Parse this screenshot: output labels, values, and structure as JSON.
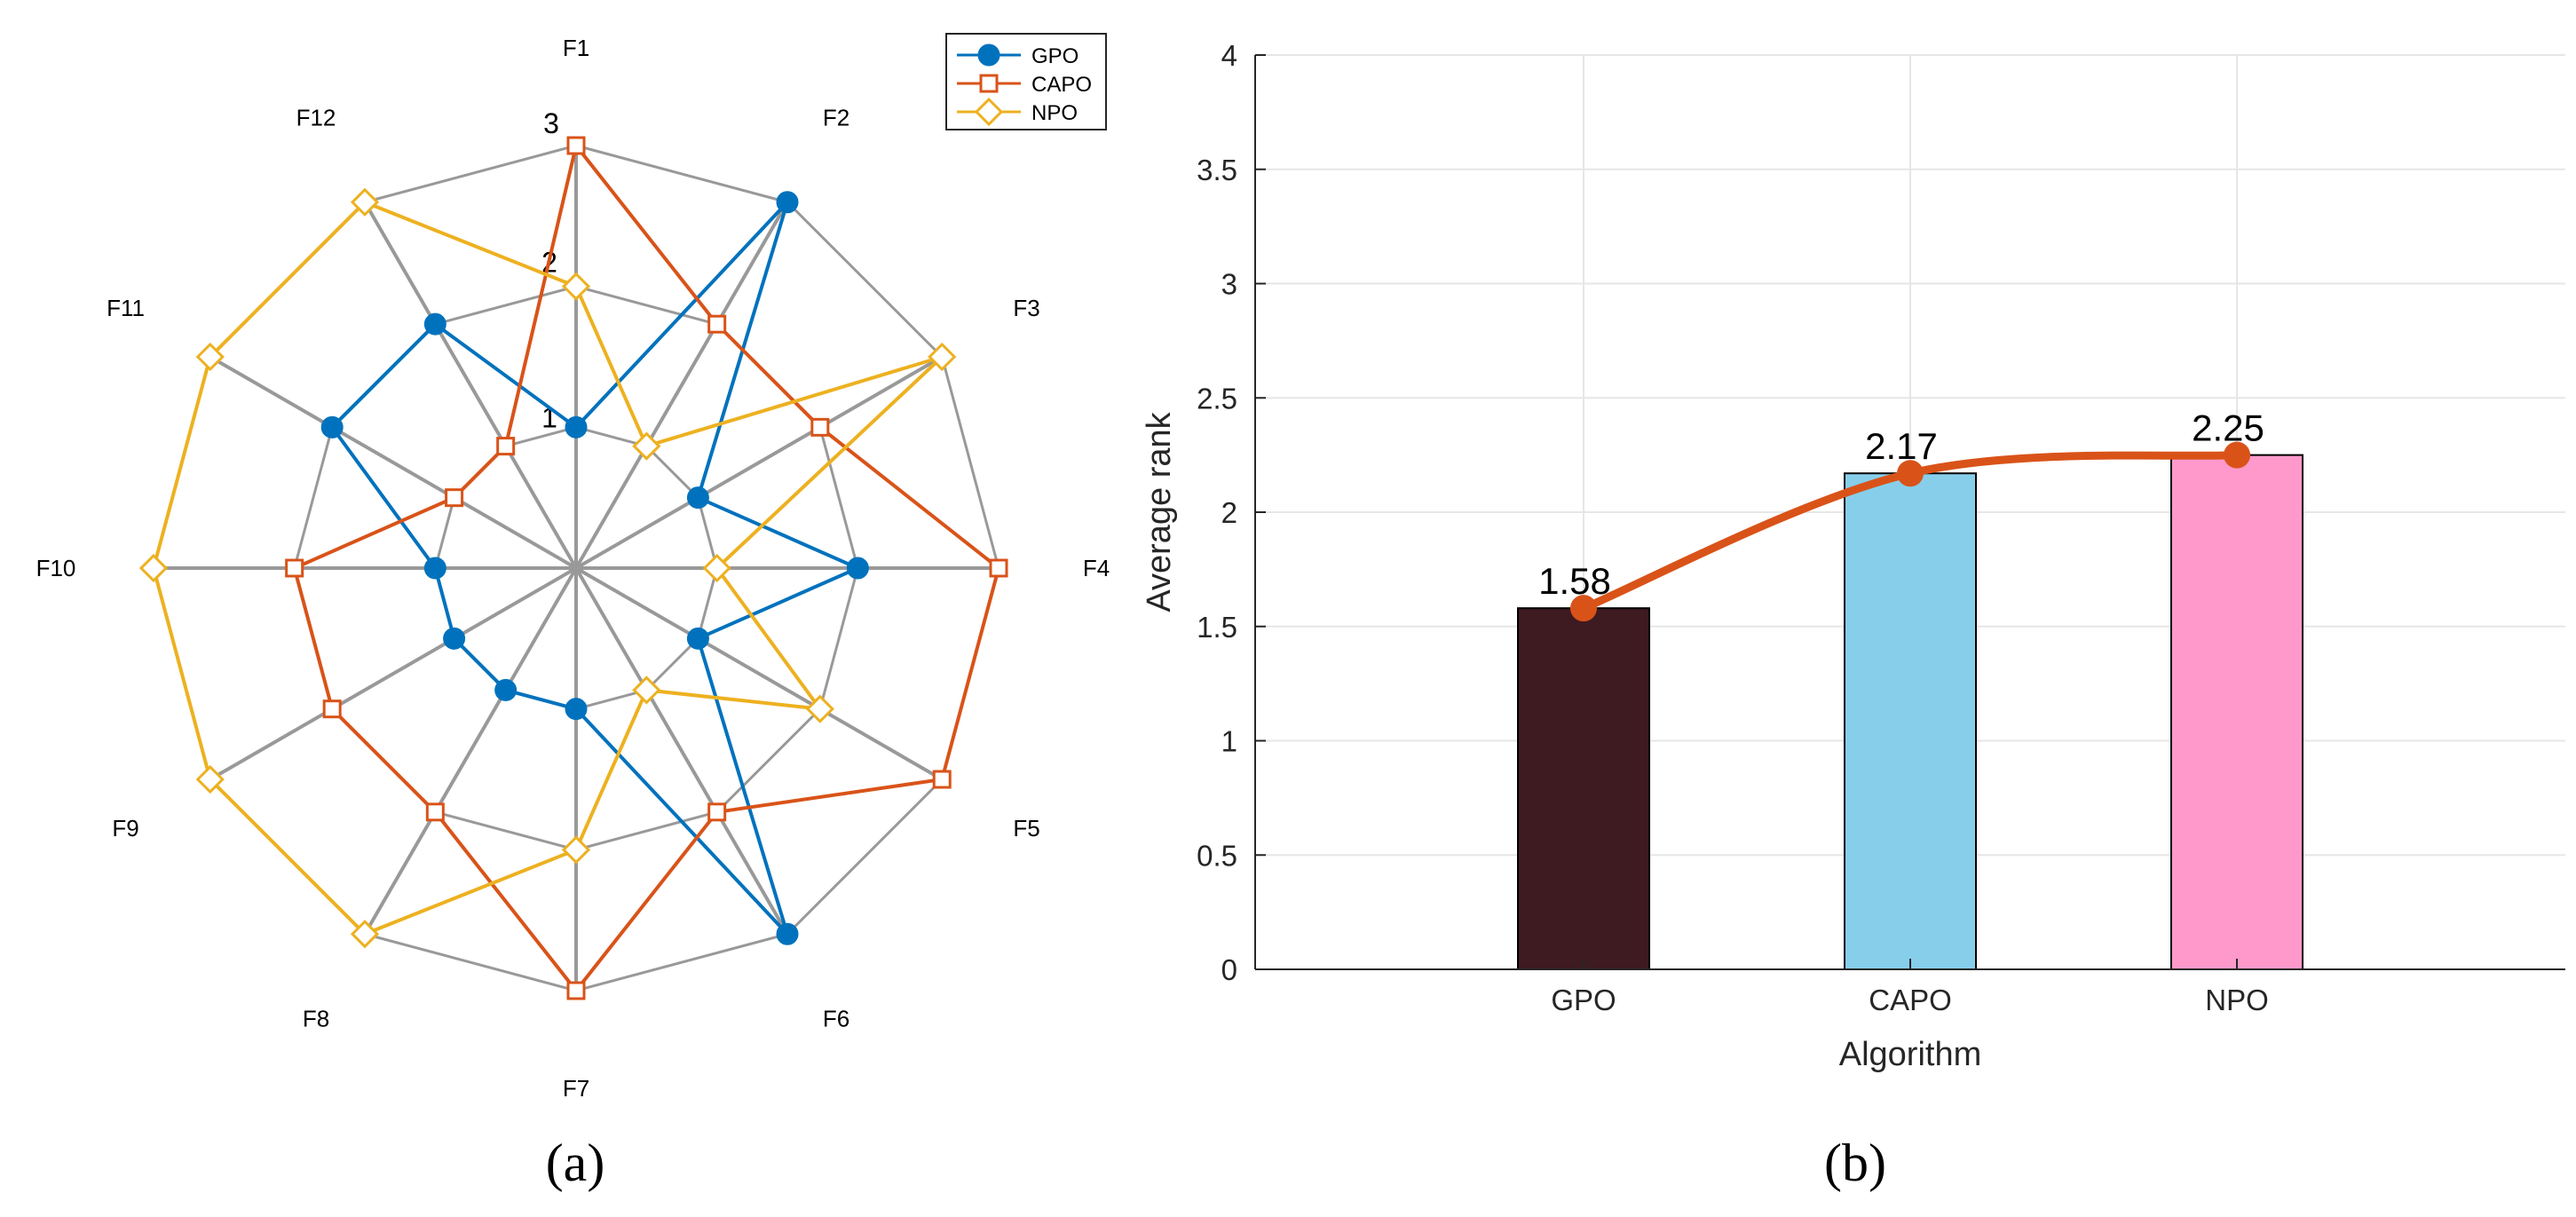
{
  "chart_data": [
    {
      "type": "radar",
      "panel_label": "(a)",
      "axes": [
        "F1",
        "F2",
        "F3",
        "F4",
        "F5",
        "F6",
        "F7",
        "F8",
        "F9",
        "F10",
        "F11",
        "F12"
      ],
      "ring_labels": [
        "1",
        "2",
        "3"
      ],
      "rmax": 3,
      "series": [
        {
          "name": "GPO",
          "color": "#0072BD",
          "marker": "circle",
          "values": [
            1,
            3,
            1,
            2,
            1,
            3,
            1,
            1,
            1,
            1,
            2,
            2
          ]
        },
        {
          "name": "CAPO",
          "color": "#D95319",
          "marker": "square",
          "values": [
            3,
            2,
            2,
            3,
            3,
            2,
            3,
            2,
            2,
            2,
            1,
            1
          ]
        },
        {
          "name": "NPO",
          "color": "#EDB120",
          "marker": "diamond",
          "values": [
            2,
            1,
            3,
            1,
            2,
            1,
            2,
            3,
            3,
            3,
            3,
            3
          ]
        }
      ]
    },
    {
      "type": "bar",
      "panel_label": "(b)",
      "categories": [
        "GPO",
        "CAPO",
        "NPO"
      ],
      "values": [
        1.58,
        2.17,
        2.25
      ],
      "value_labels": [
        "1.58",
        "2.17",
        "2.25"
      ],
      "bar_colors": [
        "#3E1A21",
        "#87CEEB",
        "#FF99CC"
      ],
      "trend_color": "#D95319",
      "xlabel": "Algorithm",
      "ylabel": "Average rank",
      "ylim": [
        0,
        4
      ],
      "yticks": [
        "0",
        "0.5",
        "1",
        "1.5",
        "2",
        "2.5",
        "3",
        "3.5",
        "4"
      ],
      "grid": true
    }
  ]
}
